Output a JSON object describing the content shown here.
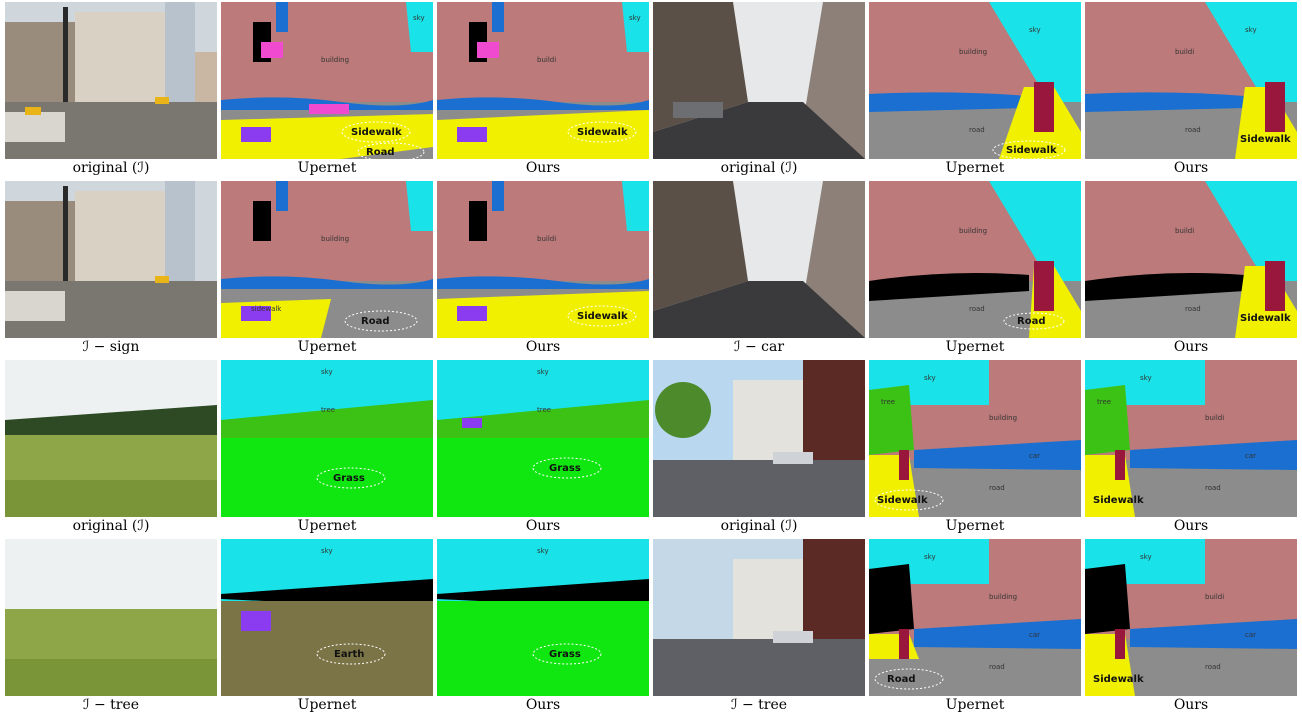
{
  "colors": {
    "sky": "#19e3e8",
    "building": "#bc7a7a",
    "road": "#8c8c8c",
    "sidewalk": "#f0f000",
    "car": "#1a6fd0",
    "person": "#99163c",
    "tree": "#3cc215",
    "grass": "#10e610",
    "earth": "#7a7446",
    "black": "#000000",
    "pink": "#f04ad0",
    "purple": "#8c3cf0",
    "check": "#5dbb3a",
    "cross": "#e8312f"
  },
  "captions": [
    [
      "original (ℐ)",
      "Upernet",
      "Ours",
      "original (ℐ)",
      "Upernet",
      "Ours"
    ],
    [
      "ℐ − sign",
      "Upernet",
      "Ours",
      "ℐ − car",
      "Upernet",
      "Ours"
    ],
    [
      "original (ℐ)",
      "Upernet",
      "Ours",
      "original (ℐ)",
      "Upernet",
      "Ours"
    ],
    [
      "ℐ − tree",
      "Upernet",
      "Ours",
      "ℐ − tree",
      "Upernet",
      "Ours"
    ]
  ],
  "seg_labels": {
    "sky": "sky",
    "building": "building",
    "building_trunc": "buildi",
    "tree": "tree",
    "road": "road",
    "sidewalk": "sidewalk",
    "car": "car"
  },
  "tags": {
    "road": "Road",
    "sidewalk": "Sidewalk",
    "grass": "Grass",
    "earth": "Earth"
  }
}
